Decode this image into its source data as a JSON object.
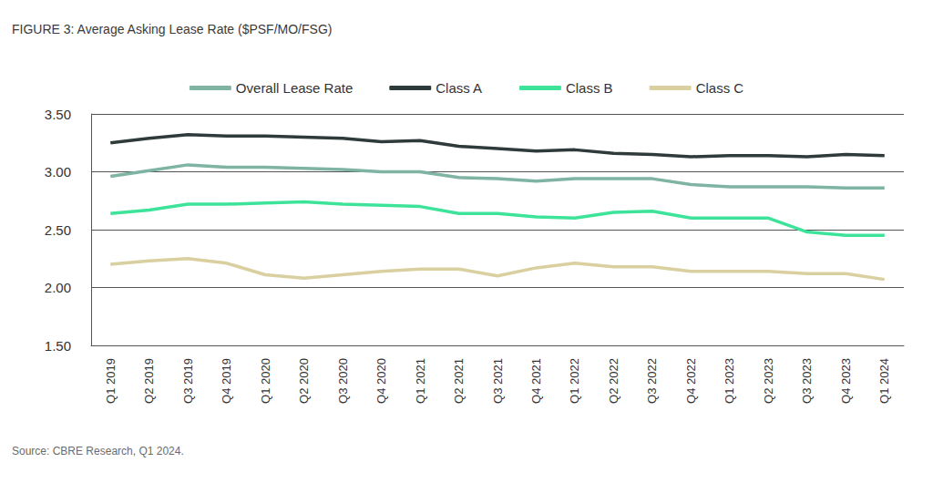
{
  "chart_data": {
    "type": "line",
    "title": "FIGURE 3: Average Asking Lease Rate ($PSF/MO/FSG)",
    "source": "Source: CBRE Research, Q1 2024.",
    "categories": [
      "Q1 2019",
      "Q2 2019",
      "Q3 2019",
      "Q4 2019",
      "Q1 2020",
      "Q2 2020",
      "Q3 2020",
      "Q4 2020",
      "Q1 2021",
      "Q2 2021",
      "Q3 2021",
      "Q4 2021",
      "Q1 2022",
      "Q2 2022",
      "Q3 2022",
      "Q4 2022",
      "Q1 2023",
      "Q2 2023",
      "Q3 2023",
      "Q4 2023",
      "Q1 2024"
    ],
    "series": [
      {
        "name": "Overall Lease Rate",
        "color": "#7fb3a4",
        "values": [
          2.96,
          3.01,
          3.06,
          3.04,
          3.04,
          3.03,
          3.02,
          3.0,
          3.0,
          2.95,
          2.94,
          2.92,
          2.94,
          2.94,
          2.94,
          2.89,
          2.87,
          2.87,
          2.87,
          2.86,
          2.86
        ]
      },
      {
        "name": "Class A",
        "color": "#2f3b3b",
        "values": [
          3.25,
          3.29,
          3.32,
          3.31,
          3.31,
          3.3,
          3.29,
          3.26,
          3.27,
          3.22,
          3.2,
          3.18,
          3.19,
          3.16,
          3.15,
          3.13,
          3.14,
          3.14,
          3.13,
          3.15,
          3.14
        ]
      },
      {
        "name": "Class B",
        "color": "#3ee39a",
        "values": [
          2.64,
          2.67,
          2.72,
          2.72,
          2.73,
          2.74,
          2.72,
          2.71,
          2.7,
          2.64,
          2.64,
          2.61,
          2.6,
          2.65,
          2.66,
          2.6,
          2.6,
          2.6,
          2.48,
          2.45,
          2.45
        ]
      },
      {
        "name": "Class C",
        "color": "#d9cf9f",
        "values": [
          2.2,
          2.23,
          2.25,
          2.21,
          2.11,
          2.08,
          2.11,
          2.14,
          2.16,
          2.16,
          2.1,
          2.17,
          2.21,
          2.18,
          2.18,
          2.14,
          2.14,
          2.14,
          2.12,
          2.12,
          2.07
        ]
      }
    ],
    "ylim": [
      1.5,
      3.5
    ],
    "yticks": [
      {
        "value": 1.5,
        "label": "1.50"
      },
      {
        "value": 2,
        "label": "2.00"
      },
      {
        "value": 2.5,
        "label": "2.50"
      },
      {
        "value": 3,
        "label": "3.00"
      },
      {
        "value": 3.5,
        "label": "3.50"
      }
    ],
    "grid": true,
    "legend": "top"
  }
}
